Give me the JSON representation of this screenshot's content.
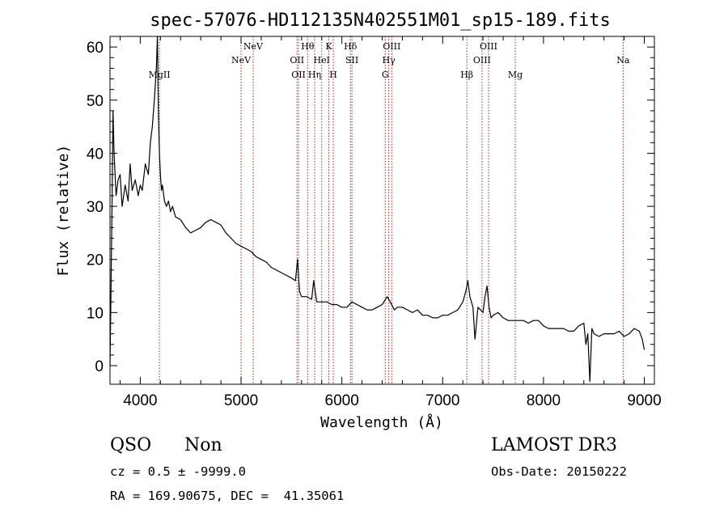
{
  "chart_data": {
    "type": "line",
    "title": "spec-57076-HD112135N402551M01_sp15-189.fits",
    "xlabel": "Wavelength (Å)",
    "ylabel": "Flux (relative)",
    "xlim": [
      3700,
      9100
    ],
    "ylim": [
      -3.5,
      62
    ],
    "xticks": [
      4000,
      5000,
      6000,
      7000,
      8000,
      9000
    ],
    "yticks": [
      0,
      10,
      20,
      30,
      40,
      50,
      60
    ],
    "grid": false,
    "line_color": "#000000",
    "marker_color": "#b22222",
    "series": [
      {
        "x": [
          3700,
          3710,
          3720,
          3730,
          3740,
          3760,
          3780,
          3800,
          3820,
          3850,
          3880,
          3900,
          3920,
          3950,
          3980,
          4000,
          4020,
          4050,
          4080,
          4100,
          4120,
          4140,
          4160,
          4170,
          4180,
          4190,
          4200,
          4210,
          4220,
          4240,
          4260,
          4280,
          4300,
          4320,
          4350,
          4400,
          4450,
          4500,
          4550,
          4600,
          4650,
          4700,
          4750,
          4800,
          4850,
          4900,
          4950,
          5000,
          5050,
          5100,
          5150,
          5200,
          5250,
          5300,
          5350,
          5400,
          5450,
          5500,
          5540,
          5560,
          5580,
          5600,
          5650,
          5700,
          5720,
          5750,
          5800,
          5850,
          5900,
          5950,
          6000,
          6050,
          6100,
          6150,
          6200,
          6250,
          6300,
          6350,
          6400,
          6450,
          6480,
          6520,
          6550,
          6600,
          6650,
          6700,
          6750,
          6800,
          6850,
          6900,
          6950,
          7000,
          7050,
          7100,
          7150,
          7200,
          7230,
          7250,
          7270,
          7300,
          7320,
          7350,
          7400,
          7420,
          7440,
          7460,
          7480,
          7500,
          7550,
          7600,
          7650,
          7700,
          7750,
          7800,
          7850,
          7900,
          7950,
          8000,
          8050,
          8100,
          8150,
          8200,
          8250,
          8300,
          8350,
          8400,
          8420,
          8440,
          8460,
          8480,
          8500,
          8550,
          8600,
          8650,
          8700,
          8750,
          8800,
          8850,
          8900,
          8950,
          8980,
          9000
        ],
        "y": [
          0,
          14,
          30,
          48,
          40,
          32,
          35,
          36,
          30,
          34,
          31,
          38,
          33,
          35,
          32,
          34,
          33,
          38,
          36,
          42,
          45,
          50,
          56,
          62,
          48,
          40,
          36,
          33,
          34,
          31,
          30,
          31,
          29,
          30,
          28,
          27.5,
          26,
          25,
          25.5,
          26,
          27,
          27.5,
          27,
          26.5,
          25,
          24,
          23,
          22.5,
          22,
          21.5,
          20.5,
          20,
          19.5,
          18.5,
          18,
          17.5,
          17,
          16.5,
          16,
          20,
          14,
          13,
          13,
          12.5,
          16,
          12,
          12,
          12,
          11.5,
          11.5,
          11,
          11,
          12,
          11.5,
          11,
          10.5,
          10.5,
          11,
          11.5,
          13,
          12,
          10.5,
          11,
          11,
          10.5,
          10,
          10.5,
          9.5,
          9.5,
          9,
          9,
          9.5,
          9.5,
          10,
          10.5,
          12,
          14,
          16,
          13,
          11,
          5,
          11,
          10,
          13,
          15,
          11,
          9,
          9.5,
          10,
          9,
          8.5,
          8.5,
          8.5,
          8.5,
          8,
          8.5,
          8.5,
          7.5,
          7,
          7,
          7,
          7,
          6.5,
          6.5,
          7.5,
          8,
          4,
          6,
          -3,
          7,
          6,
          5.5,
          6,
          6,
          6,
          6.5,
          5.5,
          6,
          7,
          6.5,
          5,
          3
        ]
      }
    ],
    "line_markers": [
      {
        "label": "MgII",
        "x": 4190,
        "row": 2
      },
      {
        "label": "NeV",
        "x": 5000,
        "row": 1
      },
      {
        "label": "NeV",
        "x": 5120,
        "row": 0
      },
      {
        "label": "OII",
        "x": 5555,
        "row": 1
      },
      {
        "label": "OII",
        "x": 5570,
        "row": 2
      },
      {
        "label": "Hθ",
        "x": 5660,
        "row": 0
      },
      {
        "label": "Hη",
        "x": 5730,
        "row": 2
      },
      {
        "label": "HeI",
        "x": 5800,
        "row": 1
      },
      {
        "label": "K",
        "x": 5870,
        "row": 0
      },
      {
        "label": "H",
        "x": 5915,
        "row": 2
      },
      {
        "label": "Hδ",
        "x": 6085,
        "row": 0
      },
      {
        "label": "SII",
        "x": 6100,
        "row": 1
      },
      {
        "label": "G",
        "x": 6430,
        "row": 2
      },
      {
        "label": "Hγ",
        "x": 6465,
        "row": 1
      },
      {
        "label": "OIII",
        "x": 6495,
        "row": 0
      },
      {
        "label": "Hβ",
        "x": 7240,
        "row": 2
      },
      {
        "label": "OIII",
        "x": 7390,
        "row": 1
      },
      {
        "label": "OIII",
        "x": 7455,
        "row": 0
      },
      {
        "label": "Mg",
        "x": 7720,
        "row": 2
      },
      {
        "label": "Na",
        "x": 8790,
        "row": 1
      }
    ]
  },
  "info": {
    "class": "QSO",
    "subclass": "Non",
    "survey": "LAMOST DR3",
    "cz": "cz = 0.5 ± -9999.0",
    "obs_date": "Obs-Date: 20150222",
    "coords": "RA = 169.90675, DEC =  41.35061"
  }
}
